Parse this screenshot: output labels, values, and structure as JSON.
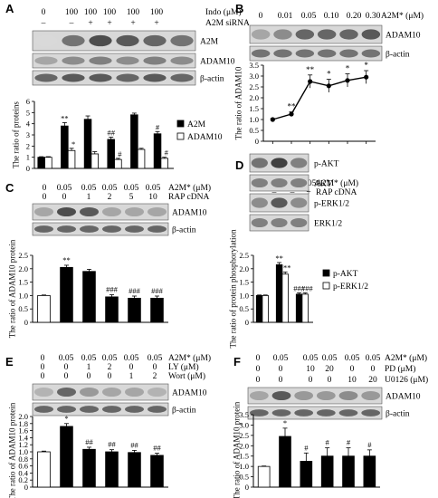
{
  "panels": [
    {
      "letter": "A",
      "rows": [
        {
          "label": "Indo (μM)",
          "values": [
            "0",
            "100",
            "100",
            "100",
            "100",
            "100"
          ]
        },
        {
          "label": "A2M siRNA",
          "values": [
            "–",
            "–",
            "+",
            "+",
            "+",
            "+"
          ]
        }
      ],
      "blots": [
        "A2M",
        "ADAM10",
        "β-actin"
      ],
      "chart_data": {
        "type": "bar",
        "ylabel": "The ratio of proteins",
        "ylim": [
          0,
          6
        ],
        "yticks": [
          0,
          1,
          2,
          3,
          4,
          5,
          6
        ],
        "series": [
          {
            "name": "A2M",
            "values": [
              1.0,
              3.8,
              4.4,
              2.6,
              4.8,
              3.1
            ],
            "errors": [
              0.05,
              0.3,
              0.3,
              0.2,
              0.15,
              0.2
            ],
            "marks": [
              "",
              "**",
              "",
              "##",
              "",
              "#"
            ]
          },
          {
            "name": "ADAM10",
            "values": [
              1.0,
              1.6,
              1.3,
              0.8,
              1.7,
              0.9
            ],
            "errors": [
              0.05,
              0.2,
              0.2,
              0.1,
              0.1,
              0.1
            ],
            "marks": [
              "",
              "*",
              "",
              "#",
              "",
              "#"
            ]
          }
        ],
        "legend": "right"
      }
    },
    {
      "letter": "B",
      "rows": [
        {
          "label": "A2M* (μM)",
          "values": [
            "0",
            "0.01",
            "0.05",
            "0.10",
            "0.20",
            "0.30"
          ]
        }
      ],
      "blots": [
        "ADAM10",
        "β-actin"
      ],
      "chart_data": {
        "type": "line",
        "ylabel": "The ratio of ADAM10",
        "ylim": [
          0,
          3.5
        ],
        "yticks": [
          "0",
          "0.5",
          "1.0",
          "1.5",
          "2.0",
          "2.5",
          "3.0",
          "3.5"
        ],
        "values": [
          1.0,
          1.25,
          2.75,
          2.55,
          2.8,
          2.95
        ],
        "errors": [
          0.05,
          0.1,
          0.3,
          0.3,
          0.3,
          0.3
        ],
        "marks": [
          "",
          "**",
          "**",
          "*",
          "*",
          "*"
        ]
      }
    },
    {
      "letter": "C",
      "rows": [
        {
          "label": "A2M* (μM)",
          "values": [
            "0",
            "0.05",
            "0.05",
            "0.05",
            "0.05",
            "0.05"
          ]
        },
        {
          "label": "RAP cDNA",
          "values": [
            "0",
            "0",
            "1",
            "2",
            "5",
            "10"
          ]
        }
      ],
      "blots": [
        "ADAM10",
        "β-actin"
      ],
      "chart_data": {
        "type": "bar",
        "ylabel": "The ratio of ADAM10 protein",
        "ylim": [
          0,
          2.5
        ],
        "yticks": [
          "0",
          "0.5",
          "1.0",
          "1.5",
          "2.0",
          "2.5"
        ],
        "values": [
          1.0,
          2.05,
          1.9,
          0.95,
          0.9,
          0.9
        ],
        "errors": [
          0.02,
          0.08,
          0.08,
          0.08,
          0.08,
          0.08
        ],
        "marks": [
          "",
          "**",
          "",
          "###",
          "###",
          "###"
        ]
      }
    },
    {
      "letter": "D",
      "rows": [
        {
          "label": "A2M* (μM)",
          "values": [
            "0",
            "0.05",
            "0.05"
          ]
        },
        {
          "label": "RAP cDNA",
          "values": [
            "–",
            "–",
            "+"
          ]
        }
      ],
      "blots": [
        "p-AKT",
        "AKT",
        "p-ERK1/2",
        "ERK1/2"
      ],
      "chart_data": {
        "type": "bar",
        "ylabel": "The ratio of protein phosphorylation",
        "ylim": [
          0,
          2.5
        ],
        "yticks": [
          "0",
          "0.5",
          "1.0",
          "1.5",
          "2.0",
          "2.5"
        ],
        "series": [
          {
            "name": "p-AKT",
            "values": [
              1.0,
              2.15,
              1.05
            ],
            "errors": [
              0.02,
              0.08,
              0.05
            ],
            "marks": [
              "",
              "**",
              "###"
            ]
          },
          {
            "name": "p-ERK1/2",
            "values": [
              1.0,
              1.8,
              1.05
            ],
            "errors": [
              0.02,
              0.08,
              0.05
            ],
            "marks": [
              "",
              "**",
              "###"
            ]
          }
        ],
        "legend": "right"
      }
    },
    {
      "letter": "E",
      "rows": [
        {
          "label": "A2M* (μM)",
          "values": [
            "0",
            "0.05",
            "0.05",
            "0.05",
            "0.05",
            "0.05"
          ]
        },
        {
          "label": "LY (μM)",
          "values": [
            "0",
            "0",
            "1",
            "2",
            "0",
            "0"
          ]
        },
        {
          "label": "Wort (μM)",
          "values": [
            "0",
            "0",
            "0",
            "0",
            "1",
            "2"
          ]
        }
      ],
      "blots": [
        "ADAM10",
        "β-actin"
      ],
      "chart_data": {
        "type": "bar",
        "ylabel": "The ratio of ADAM10 protein",
        "ylim": [
          0,
          2.0
        ],
        "yticks": [
          "0",
          "0.2",
          "0.4",
          "0.6",
          "0.8",
          "1.0",
          "1.2",
          "1.4",
          "1.6",
          "1.8",
          "2.0"
        ],
        "values": [
          1.0,
          1.72,
          1.07,
          1.0,
          0.98,
          0.9
        ],
        "errors": [
          0.02,
          0.08,
          0.06,
          0.06,
          0.06,
          0.06
        ],
        "marks": [
          "",
          "*",
          "##",
          "##",
          "##",
          "##"
        ]
      }
    },
    {
      "letter": "F",
      "rows": [
        {
          "label": "A2M* (μM)",
          "values": [
            "0",
            "0.05",
            "0.05",
            "0.05",
            "0.05",
            "0.05"
          ]
        },
        {
          "label": "PD (μM)",
          "values": [
            "0",
            "0",
            "10",
            "20",
            "0",
            "0"
          ]
        },
        {
          "label": "U0126 (μM)",
          "values": [
            "0",
            "0",
            "0",
            "0",
            "10",
            "20"
          ]
        }
      ],
      "blots": [
        "ADAM10",
        "β-actin"
      ],
      "chart_data": {
        "type": "bar",
        "ylabel": "The ratio of ADAM10 protein",
        "ylim": [
          0,
          3.5
        ],
        "yticks": [
          "0",
          "0.5",
          "1.0",
          "1.5",
          "2.0",
          "2.5",
          "3.0",
          "3.5"
        ],
        "values": [
          1.0,
          2.45,
          1.25,
          1.5,
          1.5,
          1.5
        ],
        "errors": [
          0.02,
          0.4,
          0.4,
          0.4,
          0.4,
          0.3
        ],
        "marks": [
          "",
          "*",
          "#",
          "#",
          "#",
          "#"
        ]
      }
    }
  ]
}
